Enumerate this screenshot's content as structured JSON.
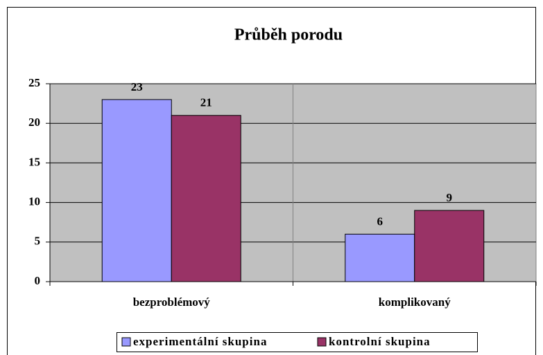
{
  "chart_data": {
    "type": "bar",
    "title": "Průběh porodu",
    "categories": [
      "bezproblémový",
      "komplikovaný"
    ],
    "series": [
      {
        "name": "experimentální skupina",
        "color": "#9999ff",
        "values": [
          23,
          6
        ]
      },
      {
        "name": "kontrolní skupina",
        "color": "#993366",
        "values": [
          21,
          9
        ]
      }
    ],
    "ylim": [
      0,
      25
    ],
    "yticks": [
      0,
      5,
      10,
      15,
      20,
      25
    ],
    "grid": true,
    "legend": "bottom"
  }
}
